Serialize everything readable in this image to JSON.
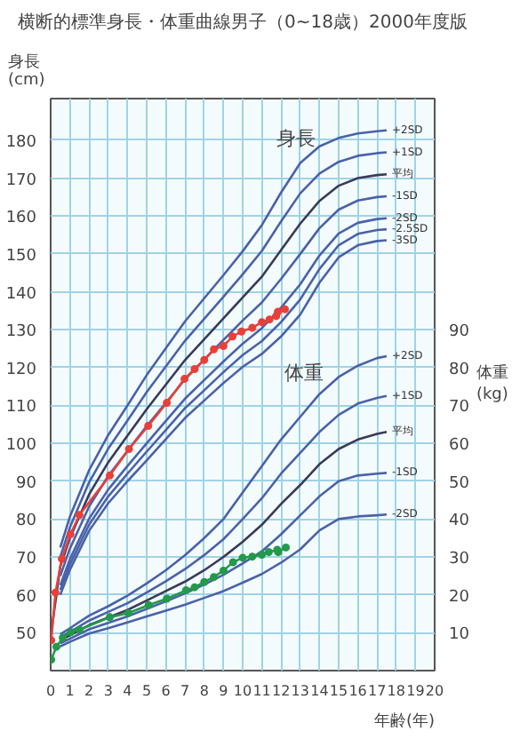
{
  "chart_data": {
    "type": "line",
    "title": "横断的標準身長・体重曲線男子（0~18歳）2000年度版",
    "xlabel": "年齢(年)",
    "ylabel": "身長\n(cm)",
    "y2label": "体重\n(kg)",
    "xlim": [
      0,
      20
    ],
    "xticks": [
      0,
      1,
      2,
      3,
      4,
      5,
      6,
      7,
      8,
      9,
      10,
      11,
      12,
      13,
      14,
      15,
      16,
      17,
      18,
      19,
      20
    ],
    "ylim": [
      40,
      191
    ],
    "yticks": [
      50,
      60,
      70,
      80,
      90,
      100,
      110,
      120,
      130,
      140,
      150,
      160,
      170,
      180
    ],
    "y2lim": [
      0,
      151
    ],
    "y2ticks": [
      10,
      20,
      30,
      40,
      50,
      60,
      70,
      80,
      90
    ],
    "grid": true,
    "annotations": [
      "身長",
      "体重"
    ],
    "series": [
      {
        "name": "+2SD",
        "color": "#4a62a8",
        "marker": "none",
        "x": [
          0.5,
          1,
          2,
          3,
          4,
          5,
          6,
          7,
          8,
          9,
          10,
          11,
          12,
          13,
          14,
          15,
          16,
          17,
          17.5
        ],
        "values": [
          72.5,
          80.6,
          92.9,
          102.2,
          110,
          118,
          125.1,
          132.2,
          138.3,
          144.4,
          150.7,
          157.6,
          166.2,
          174,
          178.4,
          180.6,
          181.8,
          182.4,
          182.6
        ]
      },
      {
        "name": "+1SD",
        "color": "#4a62a8",
        "marker": "none",
        "x": [
          0.5,
          1,
          2,
          3,
          4,
          5,
          6,
          7,
          8,
          9,
          10,
          11,
          12,
          13,
          14,
          15,
          16,
          17,
          17.5
        ],
        "values": [
          70,
          77.8,
          89.7,
          98.6,
          106,
          113.5,
          120.3,
          127.1,
          132.9,
          138.7,
          144.6,
          150.8,
          158.6,
          166,
          171.2,
          174.3,
          175.9,
          176.6,
          176.8
        ]
      },
      {
        "name": "平均",
        "color": "#3a3a58",
        "marker": "none",
        "x": [
          0,
          0.5,
          1,
          2,
          3,
          4,
          5,
          6,
          7,
          8,
          9,
          10,
          11,
          12,
          13,
          14,
          15,
          16,
          17,
          17.5
        ],
        "values": [
          49,
          67.5,
          75,
          86.5,
          95,
          102,
          109,
          115.5,
          122,
          127.5,
          133,
          138.5,
          144,
          151,
          158,
          164,
          168,
          170,
          170.8,
          171
        ]
      },
      {
        "name": "-1SD",
        "color": "#4a62a8",
        "marker": "none",
        "x": [
          0.5,
          1,
          2,
          3,
          4,
          5,
          6,
          7,
          8,
          9,
          10,
          11,
          12,
          13,
          14,
          15,
          16,
          17,
          17.5
        ],
        "values": [
          65,
          72.2,
          83.3,
          91.4,
          98,
          104.5,
          110.7,
          116.9,
          122.1,
          127.3,
          132.4,
          137.2,
          143.4,
          150,
          156.8,
          161.7,
          164.1,
          165,
          165.2
        ]
      },
      {
        "name": "-2SD",
        "color": "#4a62a8",
        "marker": "none",
        "x": [
          0.5,
          1,
          2,
          3,
          4,
          5,
          6,
          7,
          8,
          9,
          10,
          11,
          12,
          13,
          14,
          15,
          16,
          17,
          17.5
        ],
        "values": [
          62.5,
          69.4,
          80.1,
          87.8,
          94,
          100,
          105.9,
          111.8,
          116.7,
          121.6,
          126.3,
          130.4,
          135.8,
          142,
          149.6,
          155.4,
          158.2,
          159.2,
          159.4
        ]
      },
      {
        "name": "-2.5SD",
        "color": "#4a62a8",
        "marker": "none",
        "x": [
          0.5,
          1,
          2,
          3,
          4,
          5,
          6,
          7,
          8,
          9,
          10,
          11,
          12,
          13,
          14,
          15,
          16,
          17,
          17.5
        ],
        "values": [
          61.3,
          68,
          78.5,
          86,
          92,
          97.8,
          103.5,
          109.3,
          114,
          118.8,
          123.3,
          127,
          132,
          138,
          146,
          152.3,
          155.3,
          156.3,
          156.5
        ]
      },
      {
        "name": "-3SD",
        "color": "#4a62a8",
        "marker": "none",
        "x": [
          0.5,
          1,
          2,
          3,
          4,
          5,
          6,
          7,
          8,
          9,
          10,
          11,
          12,
          13,
          14,
          15,
          16,
          17,
          17.5
        ],
        "values": [
          60,
          66.6,
          76.9,
          84.2,
          90,
          95.5,
          101.1,
          106.7,
          111.3,
          115.9,
          120.2,
          123.6,
          128.2,
          134,
          142.4,
          149.1,
          152.3,
          153.4,
          153.6
        ]
      },
      {
        "name": "+2SD",
        "color": "#4a62a8",
        "marker": "none",
        "axis": "y2",
        "x": [
          0.5,
          1,
          2,
          3,
          4,
          5,
          6,
          7,
          8,
          9,
          10,
          11,
          12,
          13,
          14,
          15,
          16,
          17,
          17.5
        ],
        "values": [
          9.6,
          11.2,
          14.5,
          17,
          19.8,
          23,
          26.5,
          30.5,
          35,
          40,
          47,
          54,
          61,
          67,
          73,
          77.5,
          80.5,
          82.5,
          83
        ]
      },
      {
        "name": "+1SD",
        "color": "#4a62a8",
        "marker": "none",
        "axis": "y2",
        "x": [
          0.5,
          1,
          2,
          3,
          4,
          5,
          6,
          7,
          8,
          9,
          10,
          11,
          12,
          13,
          14,
          15,
          16,
          17,
          17.5
        ],
        "values": [
          8.8,
          10.2,
          13.2,
          15.5,
          17.8,
          20.6,
          23.6,
          26.8,
          30.5,
          34.7,
          40,
          45.5,
          52,
          57.5,
          63,
          67.5,
          70.5,
          72,
          72.5
        ]
      },
      {
        "name": "平均",
        "color": "#3a3a58",
        "marker": "none",
        "axis": "y2",
        "x": [
          0.5,
          1,
          2,
          3,
          4,
          5,
          6,
          7,
          8,
          9,
          10,
          11,
          12,
          13,
          14,
          15,
          16,
          17,
          17.5
        ],
        "values": [
          8,
          9.3,
          12,
          14,
          16,
          18.5,
          21,
          23.5,
          26.5,
          30,
          34,
          38.5,
          44,
          49,
          54.5,
          58.5,
          61,
          62.5,
          63
        ]
      },
      {
        "name": "-1SD",
        "color": "#4a62a8",
        "marker": "none",
        "axis": "y2",
        "x": [
          0.5,
          1,
          2,
          3,
          4,
          5,
          6,
          7,
          8,
          9,
          10,
          11,
          12,
          13,
          14,
          15,
          16,
          17,
          17.5
        ],
        "values": [
          7.2,
          8.4,
          10.9,
          12.6,
          14.3,
          16.3,
          18.3,
          20.4,
          22.7,
          25.3,
          28.3,
          31.5,
          36,
          41,
          46,
          50,
          51.5,
          52,
          52.2
        ]
      },
      {
        "name": "-2SD",
        "color": "#4a62a8",
        "marker": "none",
        "axis": "y2",
        "x": [
          0.5,
          1,
          2,
          3,
          4,
          5,
          6,
          7,
          8,
          9,
          10,
          11,
          12,
          13,
          14,
          15,
          16,
          17,
          17.5
        ],
        "values": [
          6.4,
          7.6,
          9.8,
          11.2,
          12.7,
          14.3,
          15.8,
          17.4,
          19.2,
          21,
          23.2,
          25.5,
          28.5,
          32,
          37,
          40,
          40.7,
          41,
          41.2
        ]
      },
      {
        "color": "#e8403a",
        "marker": "circle",
        "x": [
          0.03,
          0.25,
          0.58,
          1.03,
          1.5,
          3.08,
          4.08,
          5.08,
          6.05,
          6.97,
          7.5,
          8.0,
          8.5,
          9.0,
          9.47,
          9.94,
          10.5,
          11.0,
          11.4,
          11.75,
          11.83,
          12.2
        ],
        "values": [
          48,
          60.6,
          69.5,
          76,
          81.1,
          91.5,
          98.5,
          104.6,
          110.7,
          117,
          119.6,
          122,
          124.8,
          125.7,
          128.2,
          129.5,
          130.5,
          132,
          132.7,
          133.6,
          134.7,
          135.4
        ]
      },
      {
        "color": "#23994a",
        "marker": "circle",
        "axis": "y2",
        "x": [
          0.03,
          0.3,
          0.63,
          1.05,
          1.5,
          3.08,
          4.05,
          5.1,
          6.05,
          7.05,
          7.5,
          8.0,
          8.5,
          9.0,
          9.5,
          10.0,
          10.5,
          11.0,
          11.36,
          11.8,
          11.85,
          12.25
        ],
        "values": [
          2.9,
          6.3,
          8.7,
          10.2,
          10.8,
          14.1,
          15.2,
          17.3,
          19,
          21.2,
          22,
          23.4,
          24.7,
          26.4,
          28.6,
          29.8,
          30.1,
          30.6,
          31.3,
          31.9,
          31.3,
          32.5
        ]
      }
    ]
  }
}
